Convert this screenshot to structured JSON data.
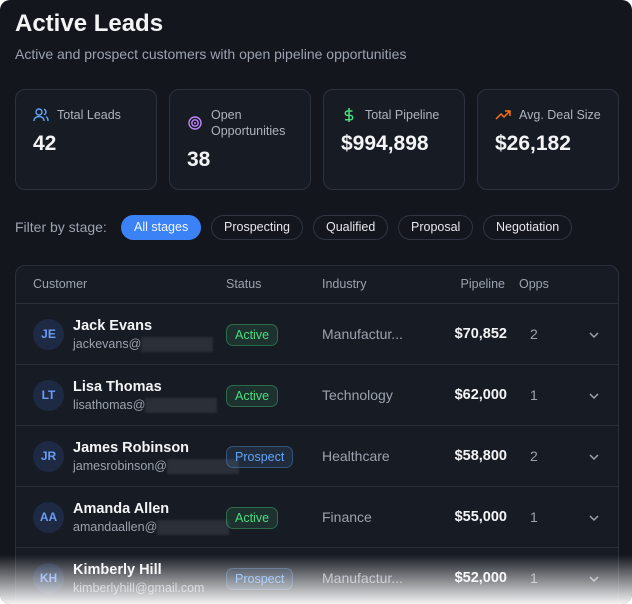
{
  "header": {
    "title": "Active Leads",
    "subtitle": "Active and prospect customers with open pipeline opportunities"
  },
  "stats": [
    {
      "label": "Total Leads",
      "value": 42
    },
    {
      "label": "Open Opportunities",
      "value": 38
    },
    {
      "label": "Total Pipeline",
      "value": "$994,898"
    },
    {
      "label": "Avg. Deal Size",
      "value": "$26,182"
    }
  ],
  "filter": {
    "label": "Filter by stage:",
    "options": [
      "All stages",
      "Prospecting",
      "Qualified",
      "Proposal",
      "Negotiation"
    ],
    "active": 0
  },
  "table": {
    "columns": [
      "Customer",
      "Status",
      "Industry",
      "Pipeline",
      "Opps"
    ],
    "status_colors": {
      "Active": "#4ade80",
      "Prospect": "#60a5fa"
    },
    "rows": [
      {
        "initials": "JE",
        "name": "Jack Evans",
        "email": "jackevans@",
        "status": "Active",
        "industry": "Manufactur...",
        "pipeline": "$70,852",
        "opps": 2
      },
      {
        "initials": "LT",
        "name": "Lisa Thomas",
        "email": "lisathomas@",
        "status": "Active",
        "industry": "Technology",
        "pipeline": "$62,000",
        "opps": 1
      },
      {
        "initials": "JR",
        "name": "James Robinson",
        "email": "jamesrobinson@",
        "status": "Prospect",
        "industry": "Healthcare",
        "pipeline": "$58,800",
        "opps": 2
      },
      {
        "initials": "AA",
        "name": "Amanda Allen",
        "email": "amandaallen@",
        "status": "Active",
        "industry": "Finance",
        "pipeline": "$55,000",
        "opps": 1
      },
      {
        "initials": "KH",
        "name": "Kimberly Hill",
        "email": "kimberlyhill@gmail.com",
        "status": "Prospect",
        "industry": "Manufactur...",
        "pipeline": "$52,000",
        "opps": 1
      }
    ]
  }
}
